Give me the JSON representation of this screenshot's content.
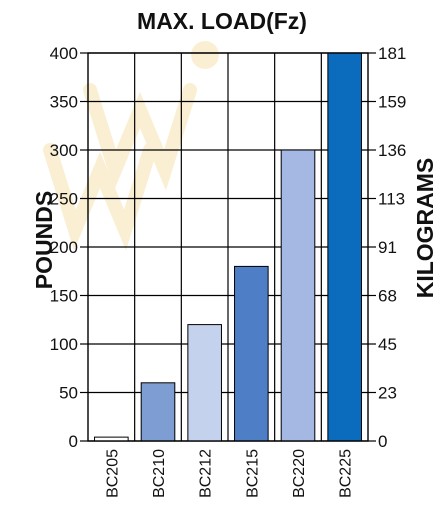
{
  "chart_data": {
    "type": "bar",
    "title": "MAX. LOAD(Fz)",
    "ylabel": "POUNDS",
    "ylabel_right": "KILOGRAMS",
    "categories": [
      "BC205",
      "BC210",
      "BC212",
      "BC215",
      "BC220",
      "BC225"
    ],
    "values": [
      4,
      60,
      120,
      180,
      300,
      400
    ],
    "colors": [
      "#ffffff",
      "#7e9dd2",
      "#c5d2ee",
      "#4e7ec6",
      "#a5b8e3",
      "#0b6cbd"
    ],
    "ylim": [
      0,
      400
    ],
    "yticks": [
      "0",
      "50",
      "100",
      "150",
      "200",
      "250",
      "300",
      "350",
      "400"
    ],
    "yticks_right": [
      "0",
      "23",
      "45",
      "68",
      "91",
      "113",
      "136",
      "159",
      "181"
    ],
    "grid": true
  },
  "watermark": {
    "color": "#e8a80c"
  }
}
